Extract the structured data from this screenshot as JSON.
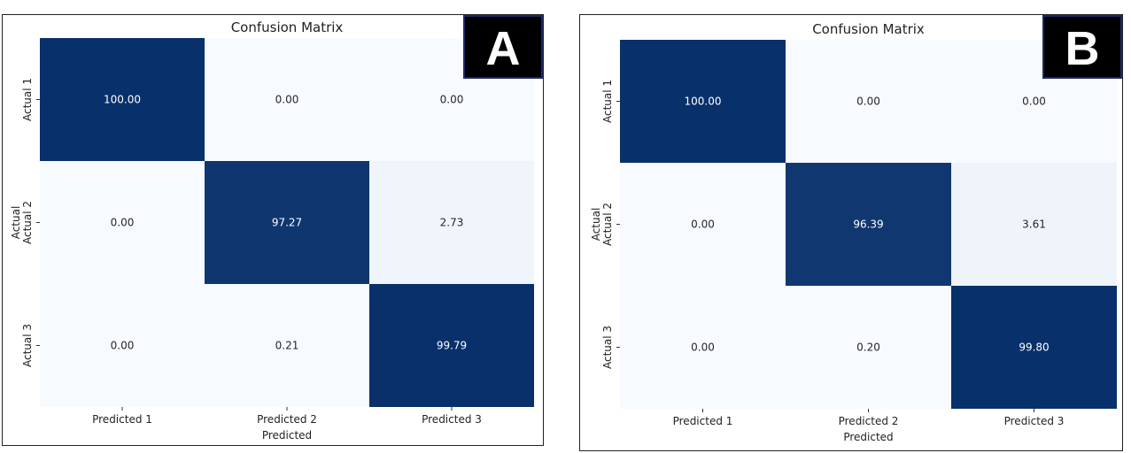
{
  "colors": {
    "high": "#08306b",
    "low": "#f7fbff",
    "text_dark": "#262626",
    "text_light": "#ffffff"
  },
  "chart_data": [
    {
      "type": "heatmap",
      "panel_label": "A",
      "title": "Confusion Matrix",
      "xlabel": "Predicted",
      "ylabel": "Actual",
      "x_categories": [
        "Predicted 1",
        "Predicted 2",
        "Predicted 3"
      ],
      "y_categories": [
        "Actual 1",
        "Actual 2",
        "Actual 3"
      ],
      "values": [
        [
          100.0,
          0.0,
          0.0
        ],
        [
          0.0,
          97.27,
          2.73
        ],
        [
          0.0,
          0.21,
          99.79
        ]
      ],
      "value_labels": [
        [
          "100.00",
          "0.00",
          "0.00"
        ],
        [
          "0.00",
          "97.27",
          "2.73"
        ],
        [
          "0.00",
          "0.21",
          "99.79"
        ]
      ],
      "colorscale": "Blues"
    },
    {
      "type": "heatmap",
      "panel_label": "B",
      "title": "Confusion Matrix",
      "xlabel": "Predicted",
      "ylabel": "Actual",
      "x_categories": [
        "Predicted 1",
        "Predicted 2",
        "Predicted 3"
      ],
      "y_categories": [
        "Actual 1",
        "Actual 2",
        "Actual 3"
      ],
      "values": [
        [
          100.0,
          0.0,
          0.0
        ],
        [
          0.0,
          96.39,
          3.61
        ],
        [
          0.0,
          0.2,
          99.8
        ]
      ],
      "value_labels": [
        [
          "100.00",
          "0.00",
          "0.00"
        ],
        [
          "0.00",
          "96.39",
          "3.61"
        ],
        [
          "0.00",
          "0.20",
          "99.80"
        ]
      ],
      "colorscale": "Blues"
    }
  ]
}
